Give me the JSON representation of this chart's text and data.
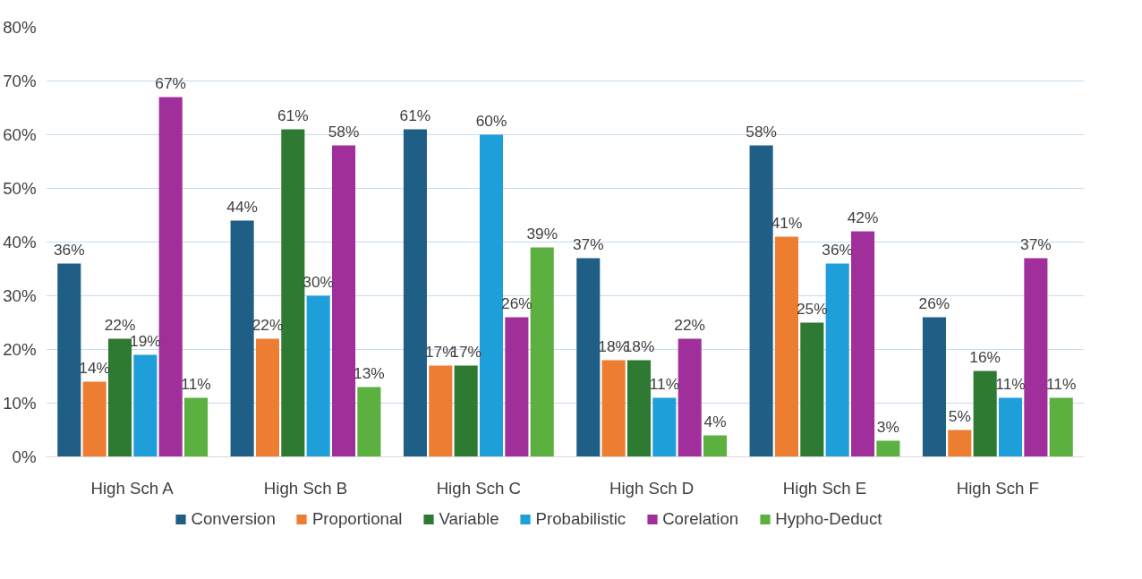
{
  "chart_data": {
    "type": "bar",
    "categories": [
      "High Sch A",
      "High Sch B",
      "High Sch C",
      "High Sch D",
      "High Sch E",
      "High Sch F"
    ],
    "series": [
      {
        "name": "Conversion",
        "color": "#1f5f86",
        "values": [
          36,
          44,
          61,
          37,
          58,
          26
        ],
        "value_labels": [
          "36%",
          "44%",
          "61%",
          "37%",
          "58%",
          "26%"
        ]
      },
      {
        "name": "Proportional",
        "color": "#ed7d31",
        "values": [
          14,
          22,
          17,
          18,
          41,
          5
        ],
        "value_labels": [
          "14%",
          "22%",
          "17%",
          "18%",
          "41%",
          "5%"
        ]
      },
      {
        "name": "Variable",
        "color": "#2e7a32",
        "values": [
          22,
          61,
          17,
          18,
          25,
          16
        ],
        "value_labels": [
          "22%",
          "61%",
          "17%",
          "18%",
          "25%",
          "16%"
        ]
      },
      {
        "name": "Probabilistic",
        "color": "#1f9fd9",
        "values": [
          19,
          30,
          60,
          11,
          36,
          11
        ],
        "value_labels": [
          "19%",
          "30%",
          "60%",
          "11%",
          "36%",
          "11%"
        ]
      },
      {
        "name": "Corelation",
        "color": "#a12f9b",
        "values": [
          67,
          58,
          26,
          22,
          42,
          37
        ],
        "value_labels": [
          "67%",
          "58%",
          "26%",
          "22%",
          "42%",
          "37%"
        ]
      },
      {
        "name": "Hypho-Deduct",
        "color": "#5cb03f",
        "values": [
          11,
          13,
          39,
          4,
          3,
          11
        ],
        "value_labels": [
          "11%",
          "13%",
          "39%",
          "4%",
          "3%",
          "11%"
        ]
      }
    ],
    "ylim": [
      0,
      80
    ],
    "yticks": [
      {
        "value": 0,
        "label": "0%"
      },
      {
        "value": 10,
        "label": "10%"
      },
      {
        "value": 20,
        "label": "20%"
      },
      {
        "value": 30,
        "label": "30%"
      },
      {
        "value": 40,
        "label": "40%"
      },
      {
        "value": 50,
        "label": "50%"
      },
      {
        "value": 60,
        "label": "60%"
      },
      {
        "value": 70,
        "label": "70%"
      },
      {
        "value": 80,
        "label": "80%"
      }
    ],
    "grid": "y",
    "legend": "bottom"
  }
}
